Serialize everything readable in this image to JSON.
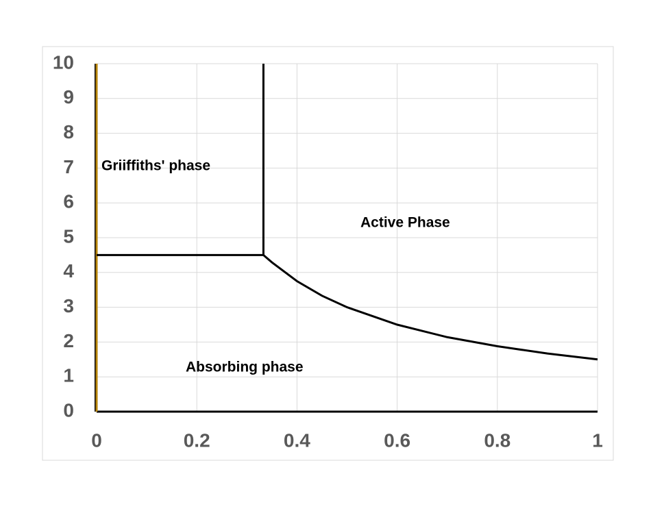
{
  "chart_data": {
    "type": "line",
    "annotations": [
      "Griiffiths' phase",
      "Active Phase",
      "Absorbing phase"
    ],
    "series": [
      {
        "color": "#b8860b",
        "x": [
          0,
          0
        ],
        "values": [
          0,
          10
        ]
      },
      {
        "color": "#000000",
        "x": [
          0.333,
          0.333
        ],
        "values": [
          10,
          4.5
        ]
      },
      {
        "color": "#000000",
        "x": [
          0,
          0.333
        ],
        "values": [
          4.5,
          4.5
        ]
      },
      {
        "color": "#000000",
        "x": [
          0.333,
          0.35,
          0.4,
          0.45,
          0.5,
          0.6,
          0.7,
          0.8,
          0.9,
          1
        ],
        "values": [
          4.5,
          4.29,
          3.75,
          3.33,
          3,
          2.5,
          2.14,
          1.88,
          1.67,
          1.5
        ]
      }
    ],
    "xlim": [
      0,
      1
    ],
    "xticks": [
      0,
      0.2,
      0.4,
      0.6,
      0.8,
      1
    ],
    "ylim": [
      0,
      10
    ],
    "yticks": [
      0,
      1,
      2,
      3,
      4,
      5,
      6,
      7,
      8,
      9,
      10
    ],
    "grid": true
  }
}
